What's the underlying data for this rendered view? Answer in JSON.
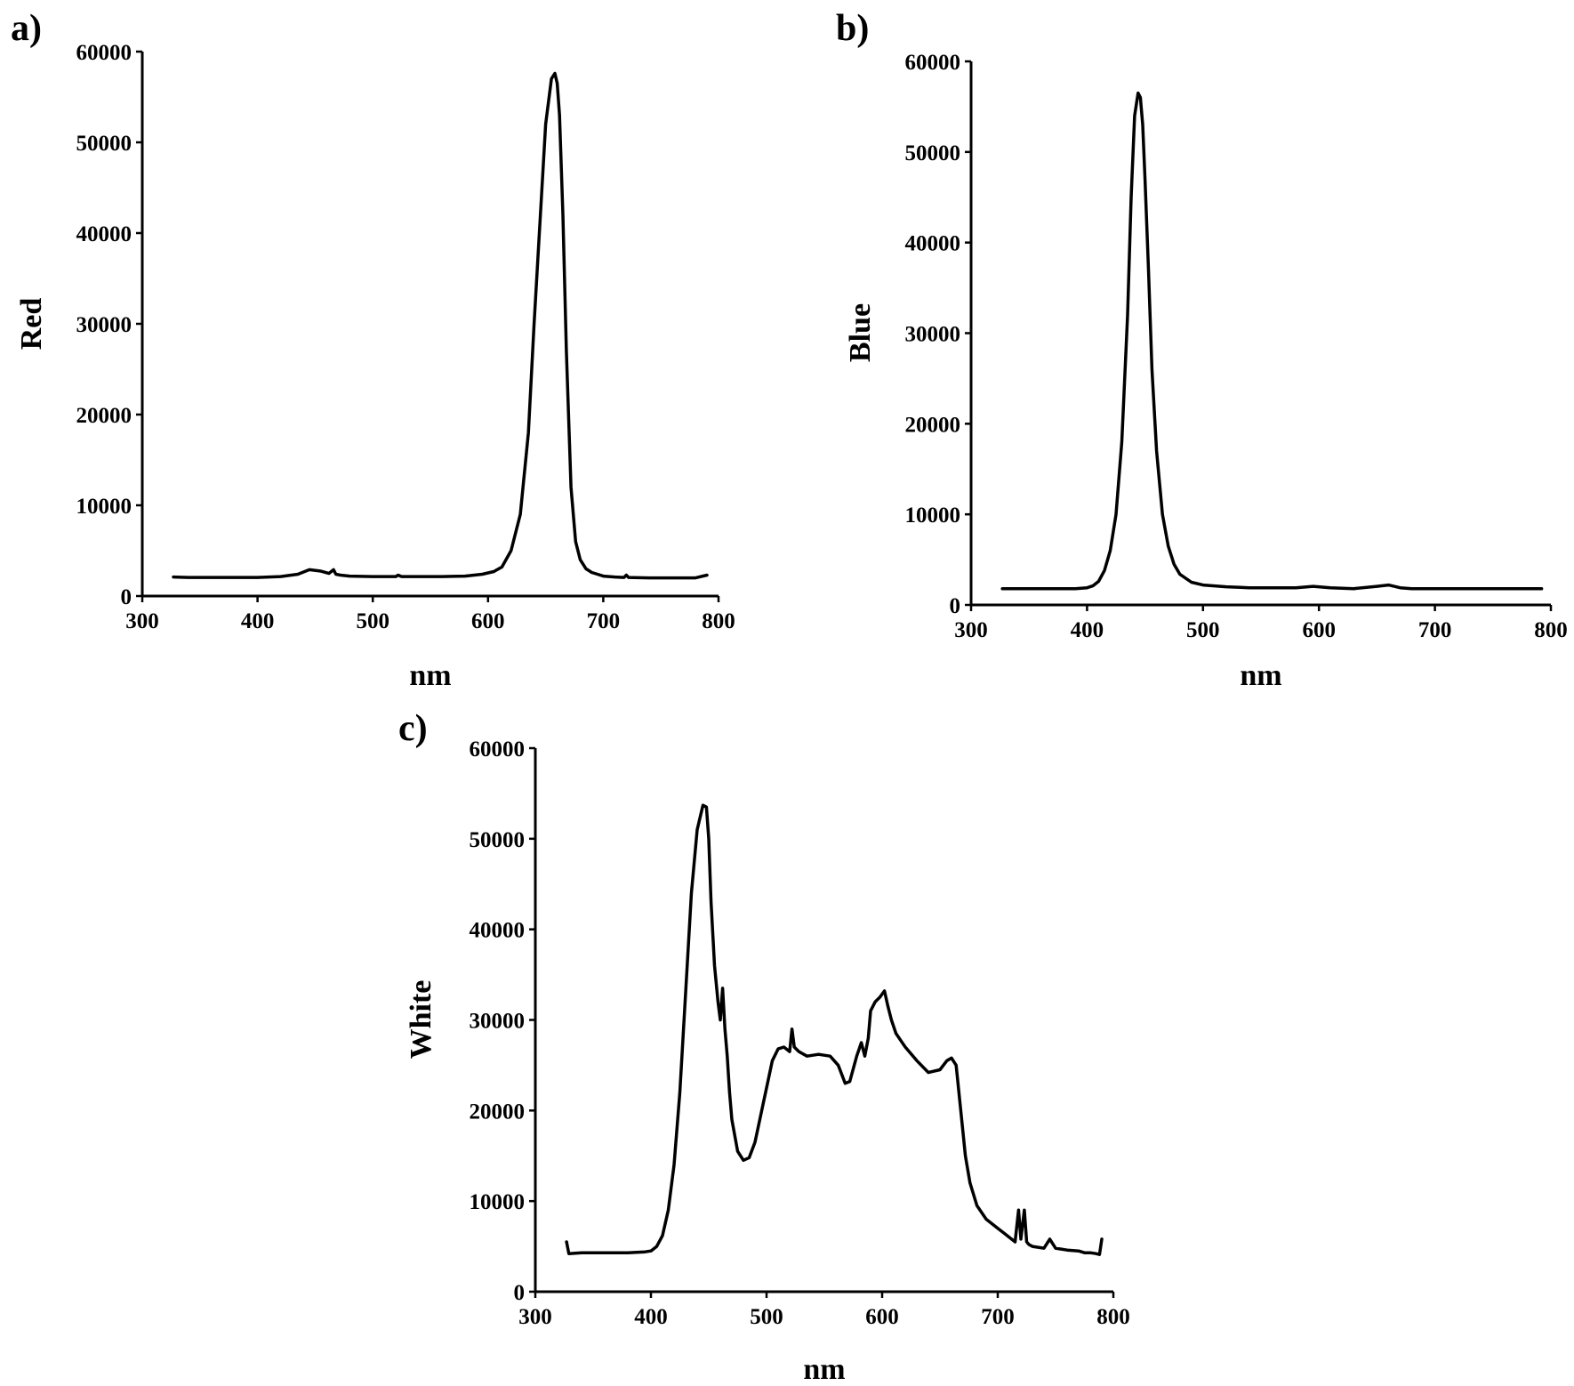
{
  "chart_data": [
    {
      "type": "line",
      "panel_label": "a)",
      "xlabel": "nm",
      "ylabel": "Red",
      "xlim": [
        300,
        800
      ],
      "ylim": [
        0,
        60000
      ],
      "xticks": [
        "300",
        "400",
        "500",
        "600",
        "700",
        "800"
      ],
      "yticks": [
        "0",
        "10000",
        "20000",
        "30000",
        "40000",
        "50000",
        "60000"
      ],
      "grid": false,
      "series": [
        {
          "x": [
            327,
            340,
            360,
            380,
            400,
            420,
            435,
            445,
            455,
            462,
            466,
            468,
            472,
            480,
            500,
            520,
            522,
            525,
            540,
            560,
            580,
            595,
            605,
            612,
            620,
            628,
            635,
            640,
            645,
            650,
            655,
            658,
            660,
            662,
            665,
            668,
            672,
            676,
            680,
            685,
            690,
            695,
            700,
            710,
            718,
            720,
            722,
            740,
            760,
            780,
            790
          ],
          "y": [
            2100,
            2050,
            2050,
            2050,
            2050,
            2150,
            2400,
            2900,
            2750,
            2500,
            2900,
            2400,
            2300,
            2200,
            2150,
            2150,
            2300,
            2150,
            2150,
            2150,
            2200,
            2400,
            2700,
            3200,
            5000,
            9000,
            18000,
            30000,
            41000,
            52000,
            57000,
            57600,
            56500,
            53000,
            42000,
            27000,
            12000,
            6000,
            4000,
            3000,
            2600,
            2400,
            2200,
            2100,
            2050,
            2300,
            2050,
            2000,
            2000,
            2000,
            2300
          ]
        }
      ]
    },
    {
      "type": "line",
      "panel_label": "b)",
      "xlabel": "nm",
      "ylabel": "Blue",
      "xlim": [
        300,
        800
      ],
      "ylim": [
        0,
        60000
      ],
      "xticks": [
        "300",
        "400",
        "500",
        "600",
        "700",
        "800"
      ],
      "yticks": [
        "0",
        "10000",
        "20000",
        "30000",
        "40000",
        "50000",
        "60000"
      ],
      "grid": false,
      "series": [
        {
          "x": [
            327,
            350,
            370,
            390,
            400,
            405,
            410,
            415,
            420,
            425,
            430,
            435,
            438,
            441,
            444,
            446,
            448,
            450,
            453,
            456,
            460,
            465,
            470,
            475,
            480,
            490,
            500,
            520,
            540,
            560,
            580,
            595,
            610,
            630,
            650,
            660,
            670,
            680,
            700,
            720,
            740,
            760,
            780,
            792
          ],
          "y": [
            1800,
            1800,
            1800,
            1800,
            1900,
            2100,
            2600,
            3800,
            6000,
            10000,
            18000,
            32000,
            45000,
            54000,
            56500,
            56000,
            53000,
            47000,
            37000,
            26000,
            17000,
            10000,
            6500,
            4500,
            3400,
            2500,
            2200,
            2000,
            1900,
            1900,
            1900,
            2050,
            1900,
            1800,
            2050,
            2200,
            1900,
            1800,
            1800,
            1800,
            1800,
            1800,
            1800,
            1800
          ]
        }
      ]
    },
    {
      "type": "line",
      "panel_label": "c)",
      "xlabel": "nm",
      "ylabel": "White",
      "xlim": [
        300,
        800
      ],
      "ylim": [
        0,
        60000
      ],
      "xticks": [
        "300",
        "400",
        "500",
        "600",
        "700",
        "800"
      ],
      "yticks": [
        "0",
        "10000",
        "20000",
        "30000",
        "40000",
        "50000",
        "60000"
      ],
      "grid": false,
      "series": [
        {
          "x": [
            327,
            329,
            340,
            360,
            380,
            395,
            400,
            405,
            410,
            415,
            420,
            425,
            430,
            435,
            440,
            445,
            448,
            450,
            452,
            455,
            458,
            460,
            462,
            464,
            466,
            467,
            468,
            470,
            475,
            480,
            485,
            490,
            495,
            500,
            505,
            510,
            515,
            520,
            522,
            524,
            528,
            535,
            545,
            555,
            562,
            568,
            572,
            578,
            582,
            585,
            588,
            590,
            594,
            598,
            602,
            605,
            608,
            612,
            620,
            630,
            640,
            650,
            656,
            660,
            664,
            668,
            672,
            676,
            682,
            690,
            700,
            705,
            710,
            715,
            718,
            720,
            723,
            725,
            727,
            730,
            740,
            745,
            750,
            760,
            770,
            775,
            780,
            785,
            788,
            790
          ],
          "y": [
            5500,
            4200,
            4300,
            4300,
            4300,
            4400,
            4500,
            5000,
            6200,
            9000,
            14000,
            22000,
            33000,
            44000,
            51000,
            53700,
            53500,
            50000,
            43000,
            36000,
            32000,
            30000,
            33500,
            29000,
            26000,
            24000,
            22000,
            19000,
            15500,
            14500,
            14800,
            16500,
            19500,
            22500,
            25500,
            26800,
            27000,
            26500,
            29000,
            27000,
            26500,
            26000,
            26200,
            26000,
            25000,
            23000,
            23200,
            26000,
            27500,
            26000,
            28000,
            31000,
            32000,
            32500,
            33200,
            31500,
            30000,
            28500,
            27000,
            25500,
            24200,
            24500,
            25500,
            25800,
            25000,
            20000,
            15000,
            12000,
            9500,
            8000,
            7000,
            6500,
            6000,
            5500,
            9000,
            5800,
            9000,
            5500,
            5200,
            5000,
            4800,
            5800,
            4800,
            4600,
            4500,
            4300,
            4300,
            4200,
            4100,
            5800
          ]
        }
      ]
    }
  ]
}
